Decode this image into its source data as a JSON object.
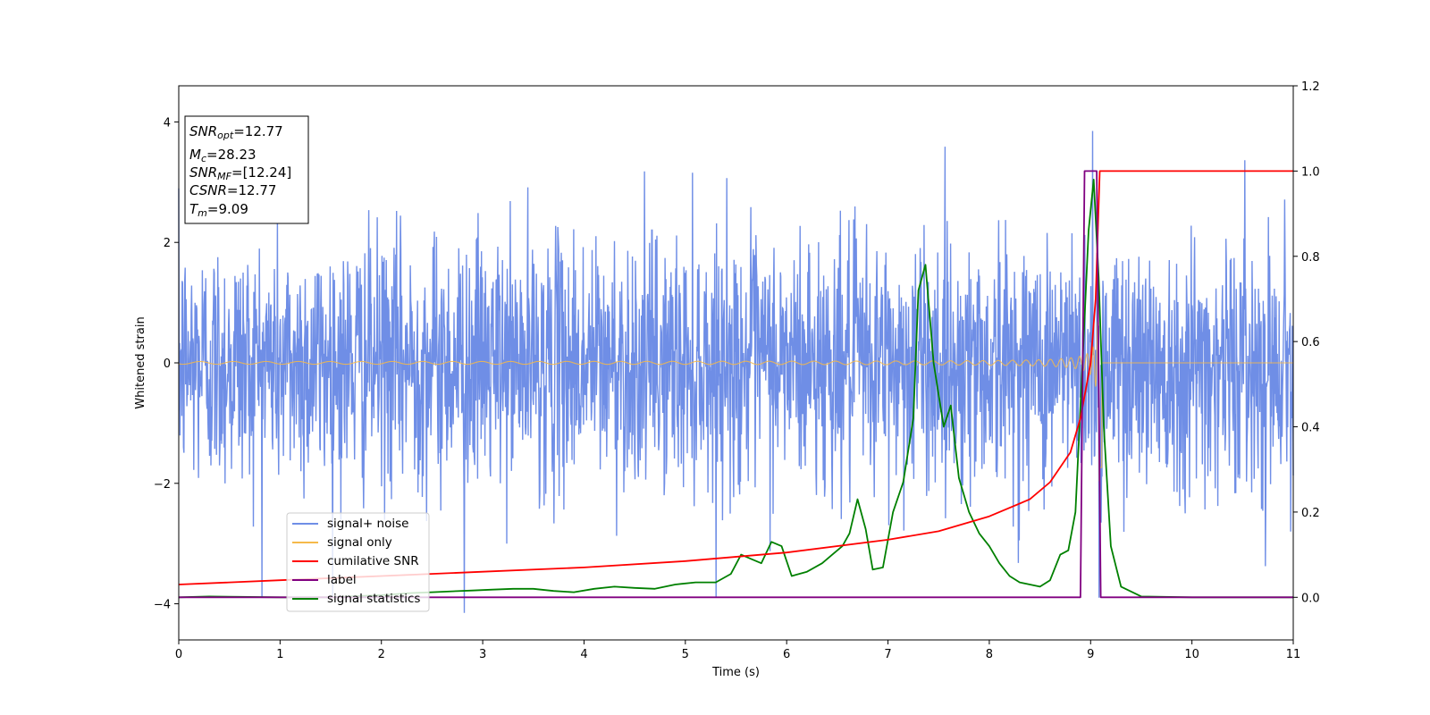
{
  "chart_data": {
    "type": "line",
    "title": "",
    "xlabel": "Time (s)",
    "ylabel": "Whitened strain",
    "xlim": [
      0,
      11
    ],
    "ylim": [
      -4.6,
      4.6
    ],
    "y2lim": [
      -0.1,
      1.2
    ],
    "xticks": [
      "0",
      "1",
      "2",
      "3",
      "4",
      "5",
      "6",
      "7",
      "8",
      "9",
      "10",
      "11"
    ],
    "yticks": [
      "−4",
      "−2",
      "0",
      "2",
      "4"
    ],
    "y2ticks": [
      "0.0",
      "0.2",
      "0.4",
      "0.6",
      "0.8",
      "1.0",
      "1.2"
    ],
    "grid": false,
    "legend_position": "lower-left",
    "info_box": {
      "snr_opt": {
        "main": "SNR",
        "sub": "opt",
        "value": "=12.77"
      },
      "mc": {
        "main": "M",
        "sub": "c",
        "value": "=28.23"
      },
      "snr_mf": {
        "main": "SNR",
        "sub": "MF",
        "value": "=[12.24]"
      },
      "csnr": {
        "main": "CSNR",
        "value": "=12.77"
      },
      "tm": {
        "main": "T",
        "sub": "m",
        "value": "=9.09"
      }
    },
    "merger_time": 9.09,
    "series": [
      {
        "name": "signal+ noise",
        "axis": "left",
        "color": "#6f8ee6",
        "noise_std": 1.0,
        "peak_spike": [
          9.02,
          3.85
        ],
        "min_spike": [
          2.82,
          -4.15
        ]
      },
      {
        "name": "signal only",
        "axis": "left",
        "color": "#f5b94a",
        "chirp_amp_start": 0.02,
        "chirp_amp_peak": 3.0,
        "start_freq_hz": 3.0
      },
      {
        "name": "cumilative SNR",
        "axis": "right",
        "color": "#ff0000",
        "x": [
          0,
          1,
          2,
          3,
          4,
          5,
          6,
          7,
          7.5,
          8,
          8.4,
          8.6,
          8.8,
          8.9,
          9.0,
          9.05,
          9.09,
          11
        ],
        "y": [
          0.03,
          0.04,
          0.05,
          0.06,
          0.07,
          0.085,
          0.105,
          0.135,
          0.155,
          0.19,
          0.23,
          0.27,
          0.34,
          0.42,
          0.55,
          0.7,
          1.0,
          1.0
        ]
      },
      {
        "name": "label",
        "axis": "right",
        "color": "#800080",
        "x": [
          0,
          8.9,
          8.94,
          9.06,
          9.1,
          11
        ],
        "y": [
          0,
          0,
          1.0,
          1.0,
          0,
          0
        ]
      },
      {
        "name": "signal statistics",
        "axis": "right",
        "color": "#008000",
        "x": [
          0,
          0.3,
          0.6,
          1.0,
          1.5,
          2.0,
          2.3,
          2.5,
          2.7,
          2.9,
          3.1,
          3.3,
          3.5,
          3.7,
          3.9,
          4.1,
          4.3,
          4.5,
          4.7,
          4.9,
          5.1,
          5.3,
          5.45,
          5.55,
          5.65,
          5.75,
          5.85,
          5.95,
          6.05,
          6.2,
          6.35,
          6.45,
          6.55,
          6.62,
          6.7,
          6.78,
          6.85,
          6.95,
          7.05,
          7.15,
          7.25,
          7.3,
          7.37,
          7.45,
          7.55,
          7.62,
          7.7,
          7.8,
          7.9,
          8.0,
          8.1,
          8.2,
          8.3,
          8.4,
          8.5,
          8.6,
          8.7,
          8.78,
          8.85,
          8.92,
          8.98,
          9.03,
          9.08,
          9.13,
          9.2,
          9.3,
          9.5,
          10,
          11
        ],
        "y": [
          0,
          0.002,
          0.001,
          0,
          0,
          0.005,
          0.01,
          0.012,
          0.014,
          0.016,
          0.018,
          0.02,
          0.02,
          0.015,
          0.012,
          0.02,
          0.025,
          0.022,
          0.02,
          0.03,
          0.035,
          0.035,
          0.055,
          0.1,
          0.09,
          0.08,
          0.13,
          0.12,
          0.05,
          0.06,
          0.08,
          0.1,
          0.12,
          0.15,
          0.23,
          0.16,
          0.065,
          0.07,
          0.2,
          0.27,
          0.42,
          0.72,
          0.78,
          0.55,
          0.4,
          0.45,
          0.28,
          0.2,
          0.15,
          0.12,
          0.08,
          0.05,
          0.035,
          0.03,
          0.025,
          0.04,
          0.1,
          0.11,
          0.2,
          0.55,
          0.86,
          0.98,
          0.75,
          0.4,
          0.12,
          0.025,
          0.002,
          0,
          0
        ]
      }
    ]
  }
}
